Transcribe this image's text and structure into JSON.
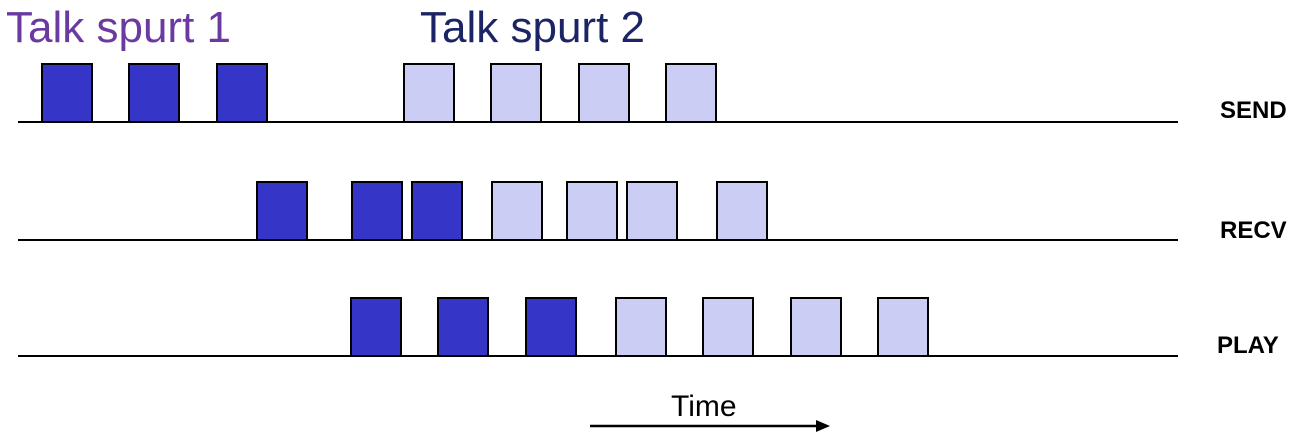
{
  "labels": {
    "talk_spurt_1": "Talk spurt 1",
    "talk_spurt_2": "Talk spurt 2",
    "time": "Time"
  },
  "colors": {
    "talk_spurt_1_packet": "#3535c8",
    "talk_spurt_2_packet": "#cccdf5",
    "talk_spurt_1_label": "#6a3aa0",
    "talk_spurt_2_label": "#1c2466"
  },
  "rows": [
    {
      "name": "send",
      "label": "SEND",
      "packets": [
        "talk-spurt-1",
        "talk-spurt-1",
        "talk-spurt-1",
        "talk-spurt-2",
        "talk-spurt-2",
        "talk-spurt-2",
        "talk-spurt-2"
      ]
    },
    {
      "name": "recv",
      "label": "RECV",
      "packets": [
        "talk-spurt-1",
        "talk-spurt-1",
        "talk-spurt-1",
        "talk-spurt-2",
        "talk-spurt-2",
        "talk-spurt-2",
        "talk-spurt-2"
      ]
    },
    {
      "name": "play",
      "label": "PLAY",
      "packets": [
        "talk-spurt-1",
        "talk-spurt-1",
        "talk-spurt-1",
        "talk-spurt-2",
        "talk-spurt-2",
        "talk-spurt-2",
        "talk-spurt-2"
      ]
    }
  ]
}
